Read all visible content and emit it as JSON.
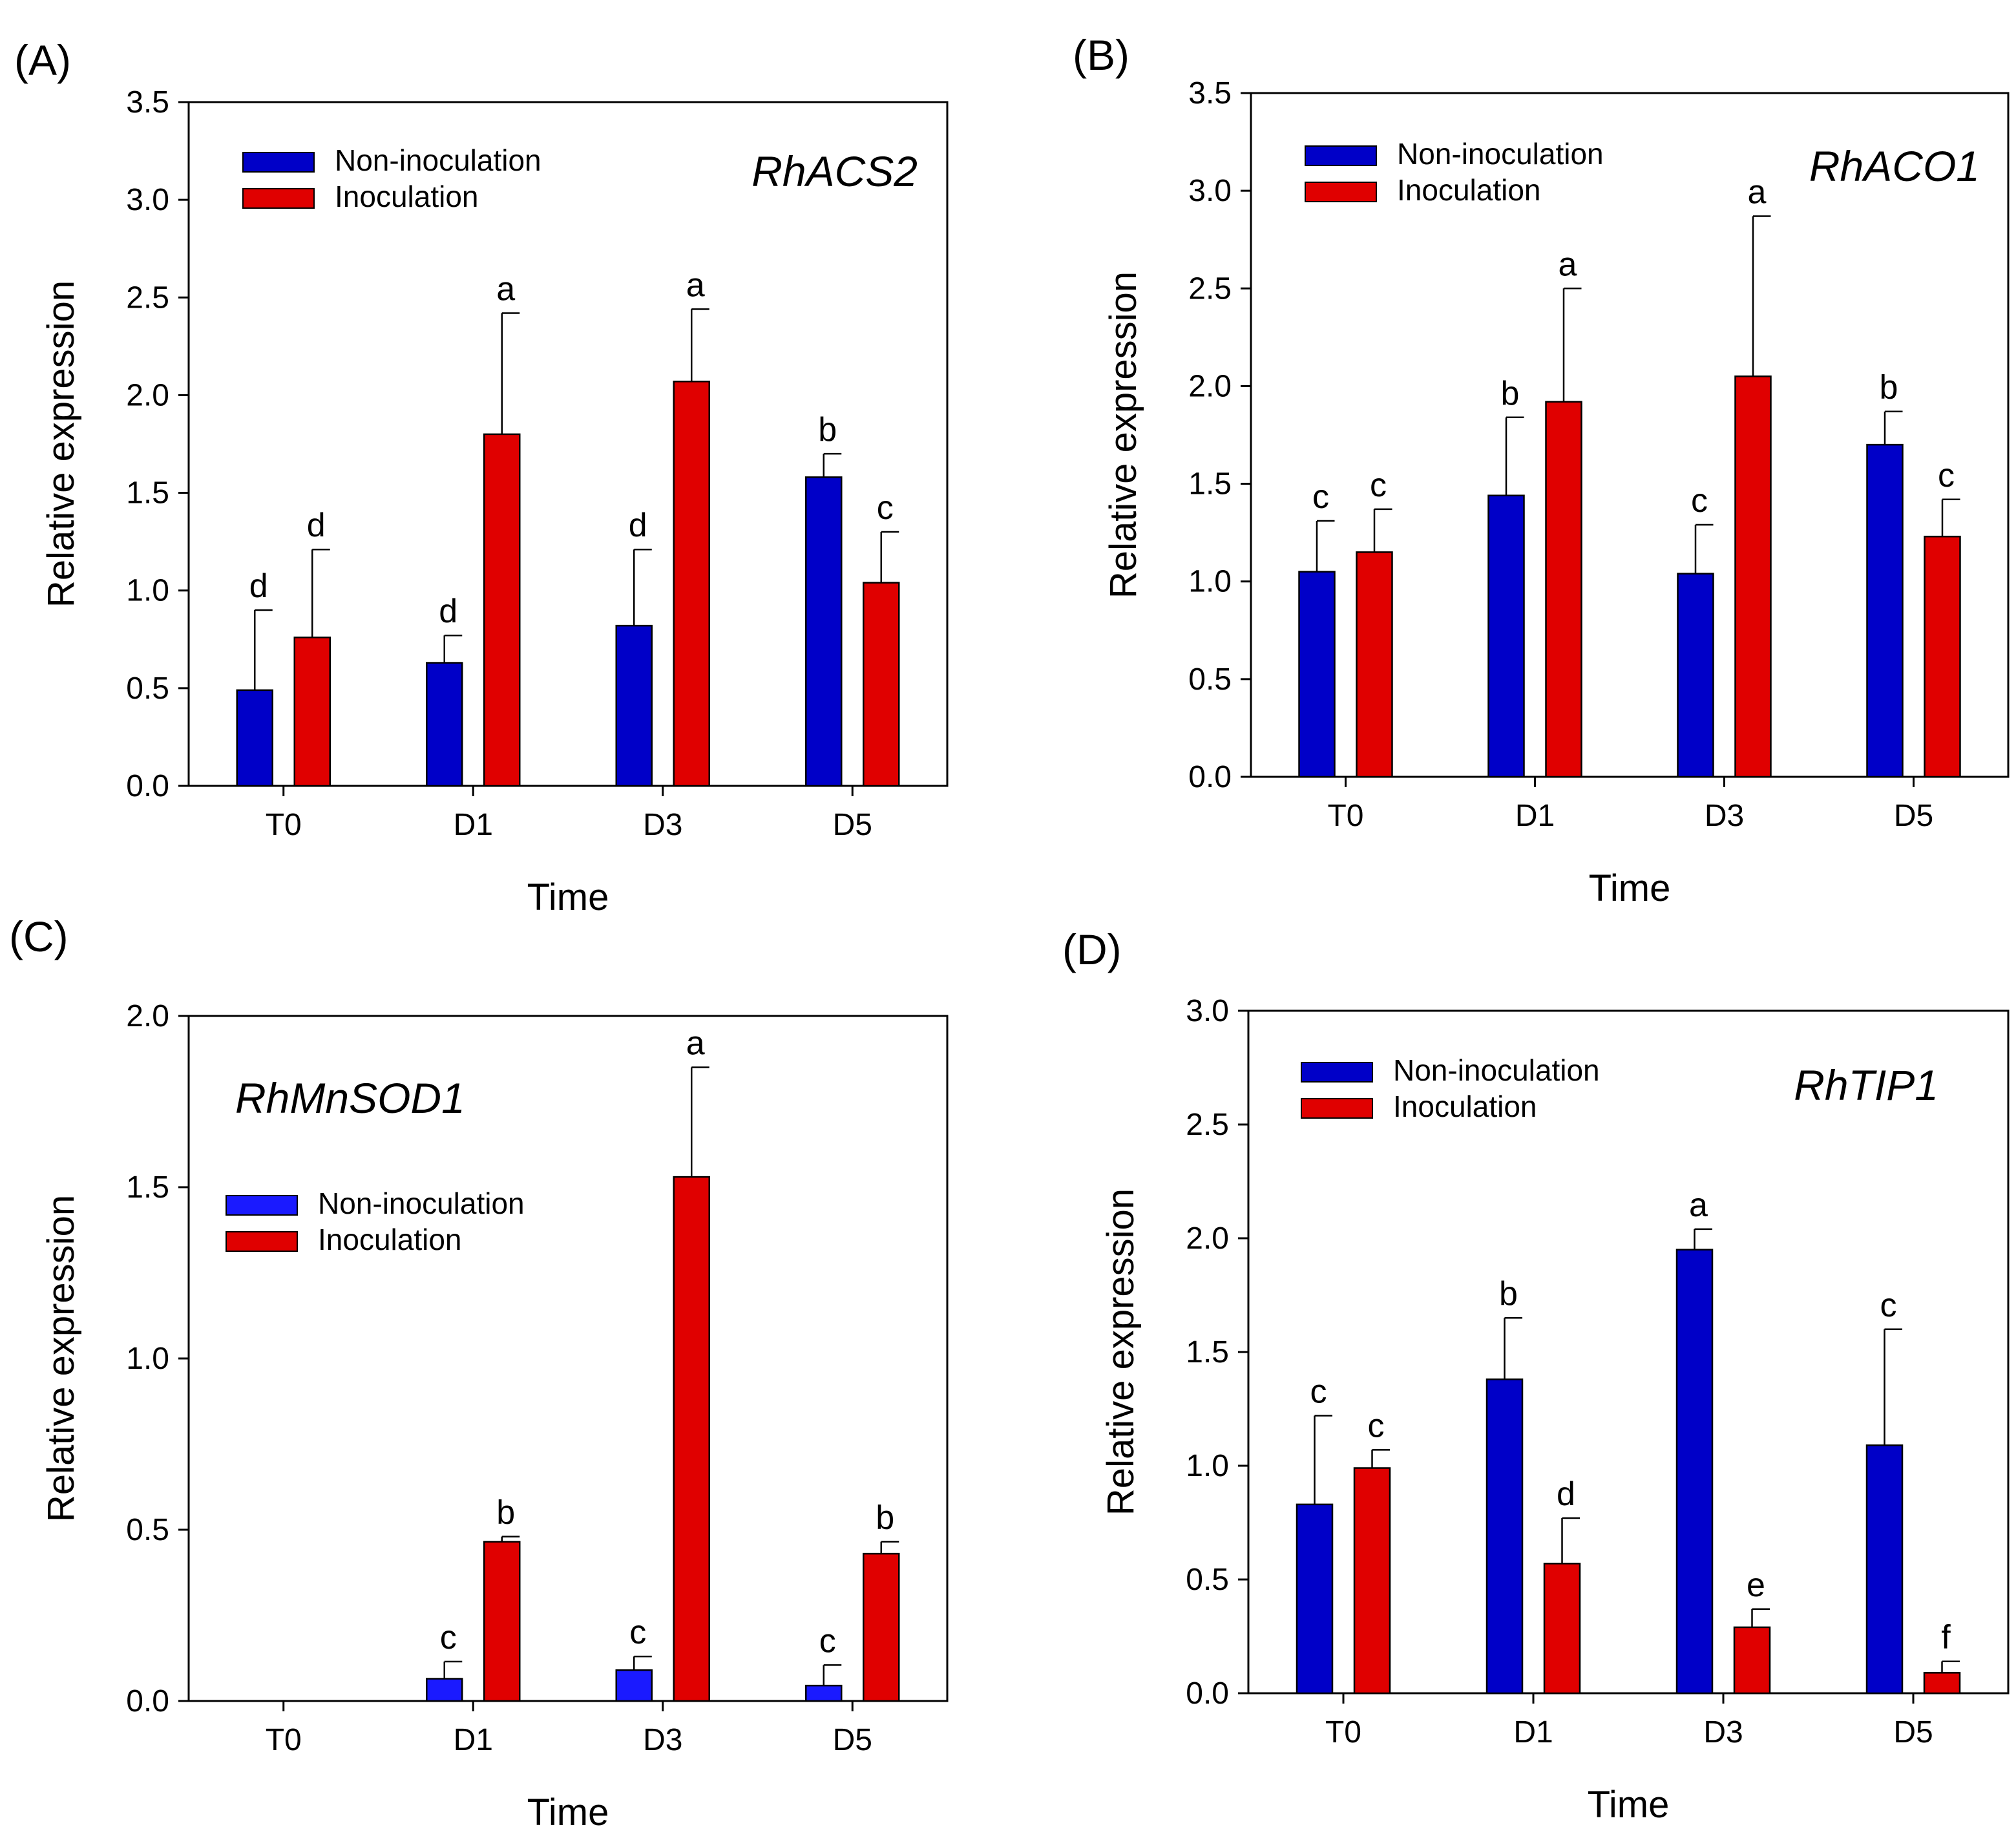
{
  "colors": {
    "non_inoculation": "#0000c8",
    "non_inoculation_bright": "#1a1aff",
    "inoculation": "#e00000",
    "axis": "#000000",
    "background": "#ffffff"
  },
  "chart_data": [
    {
      "type": "bar",
      "panel_label": "(A)",
      "title": "RhACS2",
      "xlabel": "Time",
      "ylabel": "Relative expression",
      "ylim": [
        0,
        3.5
      ],
      "yticks": [
        "0.0",
        "0.5",
        "1.0",
        "1.5",
        "2.0",
        "2.5",
        "3.0",
        "3.5"
      ],
      "legend_position": "top-left",
      "categories": [
        "T0",
        "D1",
        "D3",
        "D5"
      ],
      "series": [
        {
          "name": "Non-inoculation",
          "values": [
            0.49,
            0.63,
            0.82,
            1.58
          ],
          "errors": [
            0.41,
            0.14,
            0.39,
            0.12
          ],
          "labels": [
            "d",
            "d",
            "d",
            "b"
          ]
        },
        {
          "name": "Inoculation",
          "values": [
            0.76,
            1.8,
            2.07,
            1.04
          ],
          "errors": [
            0.45,
            0.62,
            0.37,
            0.26
          ],
          "labels": [
            "d",
            "a",
            "a",
            "c"
          ]
        }
      ]
    },
    {
      "type": "bar",
      "panel_label": "(B)",
      "title": "RhACO1",
      "xlabel": "Time",
      "ylabel": "Relative expression",
      "ylim": [
        0,
        3.5
      ],
      "yticks": [
        "0.0",
        "0.5",
        "1.0",
        "1.5",
        "2.0",
        "2.5",
        "3.0",
        "3.5"
      ],
      "legend_position": "top-left",
      "categories": [
        "T0",
        "D1",
        "D3",
        "D5"
      ],
      "series": [
        {
          "name": "Non-inoculation",
          "values": [
            1.05,
            1.44,
            1.04,
            1.7
          ],
          "errors": [
            0.26,
            0.4,
            0.25,
            0.17
          ],
          "labels": [
            "c",
            "b",
            "c",
            "b"
          ]
        },
        {
          "name": "Inoculation",
          "values": [
            1.15,
            1.92,
            2.05,
            1.23
          ],
          "errors": [
            0.22,
            0.58,
            0.82,
            0.19
          ],
          "labels": [
            "c",
            "a",
            "a",
            "c"
          ]
        }
      ]
    },
    {
      "type": "bar",
      "panel_label": "(C)",
      "title": "RhMnSOD1",
      "xlabel": "Time",
      "ylabel": "Relative expression",
      "ylim": [
        0,
        2.0
      ],
      "yticks": [
        "0.0",
        "0.5",
        "1.0",
        "1.5",
        "2.0"
      ],
      "legend_position": "left",
      "categories": [
        "T0",
        "D1",
        "D3",
        "D5"
      ],
      "series": [
        {
          "name": "Non-inoculation",
          "values": [
            0,
            0.065,
            0.09,
            0.045
          ],
          "errors": [
            0,
            0.05,
            0.04,
            0.06
          ],
          "labels": [
            "",
            "c",
            "c",
            "c"
          ]
        },
        {
          "name": "Inoculation",
          "values": [
            0,
            0.465,
            1.53,
            0.43
          ],
          "errors": [
            0,
            0.015,
            0.32,
            0.035
          ],
          "labels": [
            "",
            "b",
            "a",
            "b"
          ]
        }
      ]
    },
    {
      "type": "bar",
      "panel_label": "(D)",
      "title": "RhTIP1",
      "xlabel": "Time",
      "ylabel": "Relative expression",
      "ylim": [
        0,
        3.0
      ],
      "yticks": [
        "0.0",
        "0.5",
        "1.0",
        "1.5",
        "2.0",
        "2.5",
        "3.0"
      ],
      "legend_position": "top-left",
      "categories": [
        "T0",
        "D1",
        "D3",
        "D5"
      ],
      "series": [
        {
          "name": "Non-inoculation",
          "values": [
            0.83,
            1.38,
            1.95,
            1.09
          ],
          "errors": [
            0.39,
            0.27,
            0.09,
            0.51
          ],
          "labels": [
            "c",
            "b",
            "a",
            "c"
          ]
        },
        {
          "name": "Inoculation",
          "values": [
            0.99,
            0.57,
            0.29,
            0.09
          ],
          "errors": [
            0.08,
            0.2,
            0.08,
            0.05
          ],
          "labels": [
            "c",
            "d",
            "e",
            "f"
          ]
        }
      ]
    }
  ]
}
